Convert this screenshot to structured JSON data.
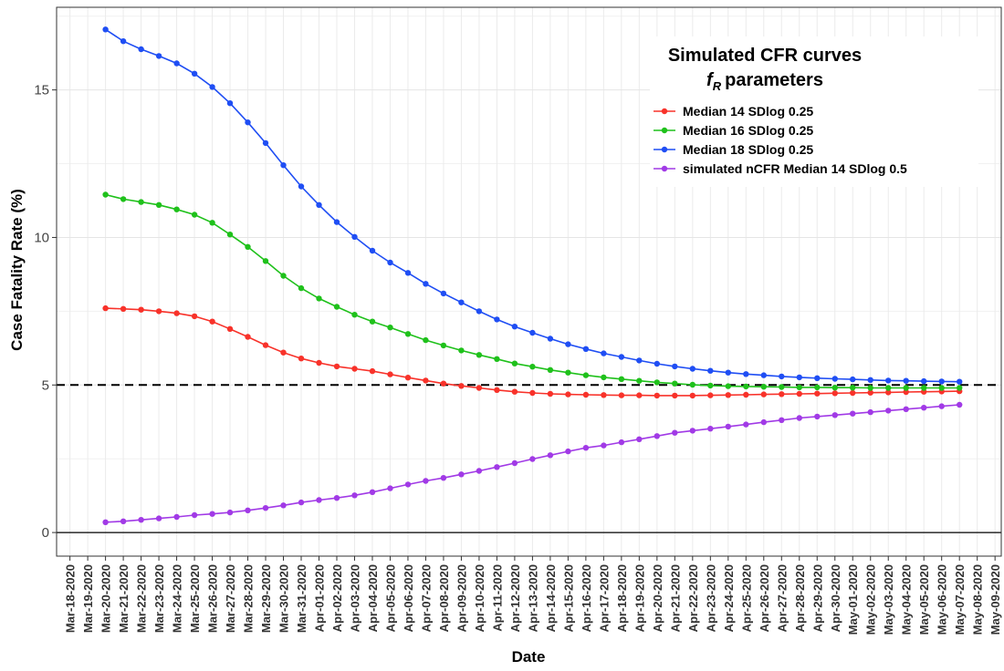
{
  "chart_data": {
    "type": "line",
    "ylabel": "Case Fatality Rate (%)",
    "xlabel": "Date",
    "legend": {
      "title_line1": "Simulated CFR curves",
      "title_line2_symbol": "f",
      "title_line2_subscript": "R",
      "title_line2_text": "parameters",
      "placement": "top-right"
    },
    "ylim": [
      -0.8,
      17.8
    ],
    "yticks": [
      0,
      5,
      10,
      15
    ],
    "reference_lines": [
      {
        "y": 5,
        "style": "dashed",
        "color": "#000000"
      },
      {
        "y": 0,
        "style": "solid",
        "color": "#000000"
      }
    ],
    "x_tick_labels": [
      "Mar-18-2020",
      "Mar-19-2020",
      "Mar-20-2020",
      "Mar-21-2020",
      "Mar-22-2020",
      "Mar-23-2020",
      "Mar-24-2020",
      "Mar-25-2020",
      "Mar-26-2020",
      "Mar-27-2020",
      "Mar-28-2020",
      "Mar-29-2020",
      "Mar-30-2020",
      "Mar-31-2020",
      "Apr-01-2020",
      "Apr-02-2020",
      "Apr-03-2020",
      "Apr-04-2020",
      "Apr-05-2020",
      "Apr-06-2020",
      "Apr-07-2020",
      "Apr-08-2020",
      "Apr-09-2020",
      "Apr-10-2020",
      "Apr-11-2020",
      "Apr-12-2020",
      "Apr-13-2020",
      "Apr-14-2020",
      "Apr-15-2020",
      "Apr-16-2020",
      "Apr-17-2020",
      "Apr-18-2020",
      "Apr-19-2020",
      "Apr-20-2020",
      "Apr-21-2020",
      "Apr-22-2020",
      "Apr-23-2020",
      "Apr-24-2020",
      "Apr-25-2020",
      "Apr-26-2020",
      "Apr-27-2020",
      "Apr-28-2020",
      "Apr-29-2020",
      "Apr-30-2020",
      "May-01-2020",
      "May-02-2020",
      "May-03-2020",
      "May-04-2020",
      "May-05-2020",
      "May-06-2020",
      "May-07-2020",
      "May-08-2020",
      "May-09-2020"
    ],
    "x_start": "Mar-20-2020",
    "series": [
      {
        "name": "Median 14 SDlog 0.25",
        "color": "#f8322a",
        "values": [
          7.6,
          7.58,
          7.55,
          7.5,
          7.43,
          7.33,
          7.15,
          6.9,
          6.63,
          6.35,
          6.1,
          5.9,
          5.75,
          5.63,
          5.55,
          5.47,
          5.36,
          5.25,
          5.15,
          5.05,
          4.97,
          4.9,
          4.83,
          4.77,
          4.73,
          4.7,
          4.68,
          4.67,
          4.66,
          4.65,
          4.65,
          4.64,
          4.64,
          4.64,
          4.65,
          4.66,
          4.67,
          4.68,
          4.69,
          4.7,
          4.71,
          4.72,
          4.73,
          4.74,
          4.75,
          4.76,
          4.77,
          4.78,
          4.79
        ]
      },
      {
        "name": "Median 16 SDlog 0.25",
        "color": "#1fc11b",
        "values": [
          11.45,
          11.3,
          11.2,
          11.1,
          10.95,
          10.77,
          10.5,
          10.1,
          9.68,
          9.2,
          8.7,
          8.28,
          7.93,
          7.65,
          7.38,
          7.15,
          6.95,
          6.73,
          6.52,
          6.34,
          6.17,
          6.02,
          5.88,
          5.73,
          5.62,
          5.51,
          5.42,
          5.33,
          5.26,
          5.2,
          5.14,
          5.09,
          5.05,
          5.01,
          4.98,
          4.96,
          4.95,
          4.94,
          4.93,
          4.92,
          4.92,
          4.91,
          4.91,
          4.9,
          4.9,
          4.9,
          4.9,
          4.9,
          4.9
        ]
      },
      {
        "name": "Median 18 SDlog 0.25",
        "color": "#1f4ef4",
        "values": [
          17.05,
          16.65,
          16.38,
          16.15,
          15.9,
          15.55,
          15.1,
          14.55,
          13.9,
          13.2,
          12.45,
          11.73,
          11.1,
          10.52,
          10.02,
          9.55,
          9.15,
          8.8,
          8.43,
          8.1,
          7.8,
          7.5,
          7.22,
          6.98,
          6.77,
          6.57,
          6.38,
          6.22,
          6.07,
          5.95,
          5.83,
          5.72,
          5.63,
          5.55,
          5.48,
          5.42,
          5.37,
          5.33,
          5.29,
          5.26,
          5.23,
          5.21,
          5.19,
          5.17,
          5.15,
          5.14,
          5.13,
          5.12,
          5.11
        ]
      },
      {
        "name": "simulated nCFR Median 14 SDlog 0.5",
        "color": "#a13ae6",
        "values": [
          0.35,
          0.38,
          0.43,
          0.48,
          0.53,
          0.59,
          0.63,
          0.68,
          0.75,
          0.83,
          0.92,
          1.02,
          1.1,
          1.17,
          1.26,
          1.37,
          1.5,
          1.63,
          1.75,
          1.85,
          1.97,
          2.09,
          2.22,
          2.35,
          2.49,
          2.62,
          2.75,
          2.87,
          2.95,
          3.06,
          3.16,
          3.27,
          3.38,
          3.45,
          3.52,
          3.59,
          3.66,
          3.74,
          3.81,
          3.88,
          3.93,
          3.98,
          4.03,
          4.08,
          4.13,
          4.18,
          4.23,
          4.28,
          4.33
        ]
      }
    ]
  }
}
